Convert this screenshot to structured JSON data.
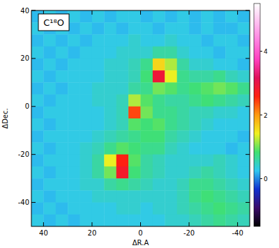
{
  "chart_data": {
    "type": "heatmap",
    "title": "C¹⁸O",
    "x_label": "ΔR.A",
    "y_label": "ΔDec.",
    "x": [
      42.5,
      37.5,
      32.5,
      27.5,
      22.5,
      17.5,
      12.5,
      7.5,
      2.5,
      -2.5,
      -7.5,
      -12.5,
      -17.5,
      -22.5,
      -27.5,
      -32.5,
      -37.5,
      -42.5
    ],
    "y": [
      37.5,
      32.5,
      27.5,
      22.5,
      17.5,
      12.5,
      7.5,
      2.5,
      -2.5,
      -7.5,
      -12.5,
      -17.5,
      -22.5,
      -27.5,
      -32.5,
      -37.5,
      -42.5,
      -47.5
    ],
    "values": [
      [
        0.2,
        0.3,
        0.2,
        0.3,
        0.2,
        0.3,
        0.2,
        0.3,
        0.3,
        0.2,
        0.3,
        0.2,
        0.3,
        0.2,
        0.3,
        0.2,
        0.3,
        0.2
      ],
      [
        0.3,
        0.2,
        0.3,
        0.2,
        0.3,
        0.2,
        0.3,
        0.2,
        0.3,
        0.3,
        0.2,
        0.3,
        0.3,
        0.2,
        0.3,
        0.2,
        0.2,
        0.3
      ],
      [
        0.2,
        0.3,
        0.2,
        0.3,
        0.2,
        0.3,
        0.3,
        0.3,
        0.4,
        0.3,
        0.3,
        0.4,
        0.3,
        0.3,
        0.2,
        0.3,
        0.3,
        0.2
      ],
      [
        0.3,
        0.2,
        0.3,
        0.2,
        0.3,
        0.3,
        0.3,
        0.4,
        0.4,
        0.4,
        0.6,
        0.6,
        0.4,
        0.3,
        0.3,
        0.2,
        0.3,
        0.3
      ],
      [
        0.2,
        0.3,
        0.2,
        0.3,
        0.3,
        0.3,
        0.4,
        0.4,
        0.5,
        0.7,
        1.6,
        1.2,
        0.6,
        0.4,
        0.4,
        0.3,
        0.3,
        0.2
      ],
      [
        0.3,
        0.2,
        0.3,
        0.3,
        0.3,
        0.3,
        0.4,
        0.4,
        0.5,
        0.8,
        2.9,
        1.4,
        0.7,
        0.6,
        0.6,
        0.7,
        0.5,
        0.4
      ],
      [
        0.2,
        0.3,
        0.2,
        0.3,
        0.3,
        0.4,
        0.4,
        0.4,
        0.6,
        0.7,
        1.0,
        0.9,
        0.7,
        0.8,
        0.9,
        1.0,
        0.9,
        0.7
      ],
      [
        0.3,
        0.2,
        0.3,
        0.3,
        0.3,
        0.4,
        0.4,
        0.5,
        1.2,
        0.9,
        0.7,
        0.6,
        0.6,
        0.7,
        0.8,
        0.7,
        0.6,
        0.5
      ],
      [
        0.2,
        0.3,
        0.3,
        0.3,
        0.3,
        0.3,
        0.4,
        0.5,
        2.4,
        1.0,
        0.7,
        0.7,
        0.6,
        0.5,
        0.5,
        0.4,
        0.4,
        0.3
      ],
      [
        0.3,
        0.2,
        0.3,
        0.3,
        0.3,
        0.3,
        0.4,
        0.5,
        0.9,
        0.8,
        0.9,
        0.7,
        0.6,
        0.5,
        0.4,
        0.3,
        0.3,
        0.3
      ],
      [
        0.2,
        0.3,
        0.3,
        0.3,
        0.3,
        0.4,
        0.5,
        0.6,
        0.7,
        0.8,
        0.8,
        0.6,
        0.5,
        0.4,
        0.3,
        0.3,
        0.3,
        0.2
      ],
      [
        0.3,
        0.2,
        0.3,
        0.3,
        0.4,
        0.5,
        0.7,
        0.9,
        0.8,
        0.7,
        0.7,
        0.5,
        0.4,
        0.3,
        0.3,
        0.3,
        0.2,
        0.3
      ],
      [
        0.2,
        0.3,
        0.3,
        0.3,
        0.4,
        0.6,
        1.4,
        2.6,
        0.9,
        0.6,
        0.5,
        0.4,
        0.4,
        0.4,
        0.4,
        0.5,
        0.4,
        0.3
      ],
      [
        0.3,
        0.2,
        0.3,
        0.3,
        0.4,
        0.6,
        1.0,
        2.8,
        0.8,
        0.6,
        0.5,
        0.4,
        0.4,
        0.5,
        0.6,
        0.5,
        0.4,
        0.3
      ],
      [
        0.2,
        0.3,
        0.3,
        0.3,
        0.4,
        0.4,
        0.6,
        0.7,
        0.6,
        0.5,
        0.4,
        0.4,
        0.5,
        0.7,
        0.7,
        0.6,
        0.5,
        0.4
      ],
      [
        0.3,
        0.2,
        0.3,
        0.3,
        0.3,
        0.4,
        0.4,
        0.4,
        0.4,
        0.4,
        0.4,
        0.4,
        0.5,
        0.7,
        0.8,
        0.7,
        0.6,
        0.5
      ],
      [
        0.2,
        0.3,
        0.2,
        0.3,
        0.3,
        0.3,
        0.3,
        0.4,
        0.4,
        0.3,
        0.4,
        0.4,
        0.5,
        0.6,
        0.7,
        0.8,
        0.7,
        0.6
      ],
      [
        0.3,
        0.2,
        0.3,
        0.2,
        0.3,
        0.3,
        0.3,
        0.3,
        0.3,
        0.3,
        0.3,
        0.4,
        0.4,
        0.5,
        0.6,
        0.7,
        0.6,
        0.5
      ]
    ],
    "xlim": [
      45,
      -45
    ],
    "ylim": [
      -50,
      40
    ],
    "xticks": [
      40,
      20,
      0,
      -20,
      -40
    ],
    "yticks": [
      -40,
      -20,
      0,
      20,
      40
    ],
    "colorbar": {
      "range": [
        -1.5,
        5.5
      ],
      "ticks": [
        0,
        2,
        4
      ],
      "colors": [
        "#000000",
        "#3a0a6a",
        "#1030d0",
        "#30c8f0",
        "#40e070",
        "#f0f020",
        "#ff9a10",
        "#ff2010",
        "#e0105a",
        "#ff40c0",
        "#ff80e0",
        "#ffc0f0",
        "#ffffff"
      ]
    }
  }
}
